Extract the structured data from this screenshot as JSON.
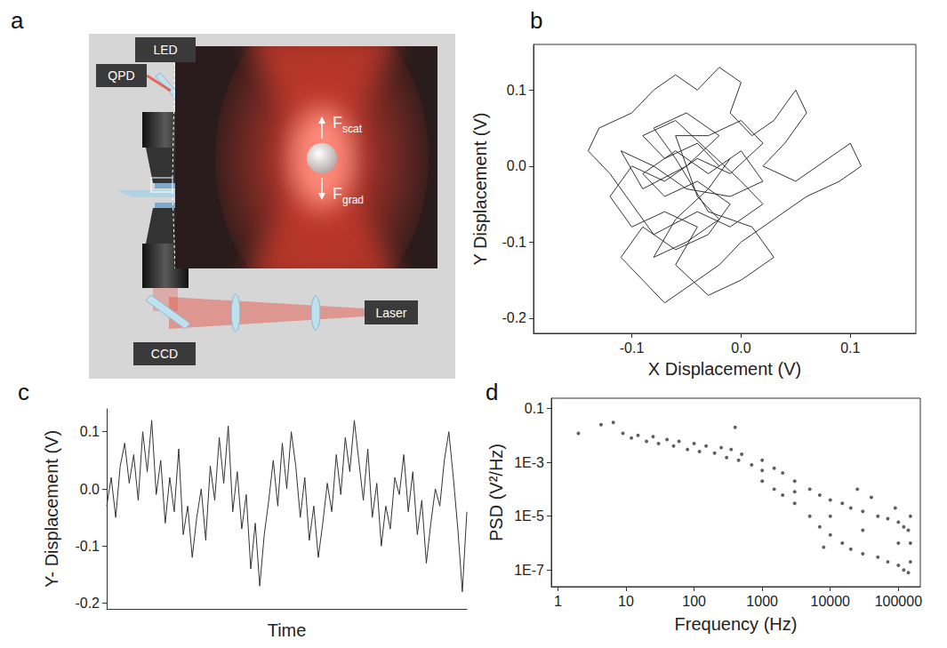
{
  "diagram": {
    "panel": "a",
    "components": {
      "led": "LED",
      "qpd": "QPD",
      "ccd": "CCD",
      "laser": "Laser"
    },
    "forces": [
      {
        "base": "F",
        "sub": "scat"
      },
      {
        "base": "F",
        "sub": "grad"
      }
    ]
  },
  "chart_data": [
    {
      "panel": "b",
      "type": "line",
      "x_label": "X Displacement (V)",
      "y_label": "Y Displacement (V)",
      "color": "#333333",
      "marker": "none",
      "line_style": "solid",
      "grid": false,
      "xlim": [
        -0.19,
        0.16
      ],
      "ylim": [
        -0.22,
        0.16
      ],
      "xticks": [
        -0.1,
        {
          "value": 0,
          "label": "0.0"
        },
        0.1
      ],
      "yticks": [
        -0.2,
        -0.1,
        {
          "value": 0,
          "label": "0.0"
        },
        0.1
      ],
      "x": [
        -0.02,
        -0.04,
        -0.07,
        -0.09,
        -0.06,
        -0.03,
        0.0,
        0.02,
        -0.01,
        -0.04,
        -0.08,
        -0.1,
        -0.12,
        -0.14,
        -0.13,
        -0.1,
        -0.08,
        -0.06,
        -0.04,
        -0.02,
        0.0,
        -0.01,
        0.01,
        0.03,
        0.05,
        0.06,
        0.04,
        0.02,
        0.05,
        0.08,
        0.1,
        0.11,
        0.09,
        0.06,
        0.03,
        0.0,
        -0.02,
        -0.05,
        -0.07,
        -0.09,
        -0.11,
        -0.09,
        -0.06,
        -0.03,
        -0.01,
        -0.04,
        -0.07,
        -0.09,
        -0.06,
        -0.03,
        0.0,
        0.02,
        -0.01,
        -0.05,
        -0.08,
        -0.11,
        -0.09,
        -0.05,
        -0.02,
        -0.05,
        -0.08,
        -0.06,
        -0.03,
        0.01,
        0.03,
        0.0,
        -0.03,
        -0.06,
        -0.04,
        -0.07,
        -0.1,
        -0.12,
        -0.1,
        -0.07,
        -0.04,
        -0.01,
        0.02,
        0.0,
        -0.03,
        -0.06,
        -0.04,
        -0.02,
        -0.05,
        -0.08,
        -0.06,
        -0.03,
        -0.01
      ],
      "values": [
        0.0,
        0.03,
        0.01,
        0.04,
        0.06,
        0.02,
        -0.02,
        -0.05,
        -0.08,
        -0.06,
        -0.09,
        -0.05,
        -0.01,
        0.02,
        0.05,
        0.07,
        0.1,
        0.12,
        0.1,
        0.13,
        0.11,
        0.07,
        0.04,
        0.06,
        0.1,
        0.07,
        0.03,
        0.0,
        -0.02,
        0.01,
        0.03,
        0.0,
        -0.02,
        -0.04,
        -0.07,
        -0.1,
        -0.13,
        -0.16,
        -0.18,
        -0.15,
        -0.12,
        -0.08,
        -0.11,
        -0.09,
        -0.05,
        -0.02,
        -0.04,
        -0.01,
        0.02,
        -0.01,
        0.02,
        -0.02,
        -0.04,
        -0.03,
        0.0,
        0.02,
        -0.03,
        0.0,
        0.04,
        0.07,
        0.05,
        0.01,
        -0.06,
        -0.08,
        -0.12,
        -0.15,
        -0.17,
        -0.13,
        -0.08,
        -0.06,
        -0.08,
        -0.04,
        0.0,
        -0.02,
        0.01,
        -0.01,
        0.03,
        0.06,
        0.04,
        0.04,
        -0.04,
        -0.07,
        -0.1,
        -0.12,
        -0.07,
        -0.03,
        0.01
      ]
    },
    {
      "panel": "c",
      "type": "line",
      "x_label": "Time",
      "y_label": "Y- Displacement (V)",
      "color": "#333333",
      "marker": "none",
      "line_style": "solid",
      "grid": false,
      "tick_labels": "y",
      "xlim": [
        0,
        80
      ],
      "ylim": [
        -0.21,
        0.14
      ],
      "yticks": [
        -0.2,
        -0.1,
        {
          "value": 0,
          "label": "0.0"
        },
        0.1
      ],
      "x": [
        0,
        1,
        2,
        3,
        4,
        5,
        6,
        7,
        8,
        9,
        10,
        11,
        12,
        13,
        14,
        15,
        16,
        17,
        18,
        19,
        20,
        21,
        22,
        23,
        24,
        25,
        26,
        27,
        28,
        29,
        30,
        31,
        32,
        33,
        34,
        35,
        36,
        37,
        38,
        39,
        40,
        41,
        42,
        43,
        44,
        45,
        46,
        47,
        48,
        49,
        50,
        51,
        52,
        53,
        54,
        55,
        56,
        57,
        58,
        59,
        60,
        61,
        62,
        63,
        64,
        65,
        66,
        67,
        68,
        69,
        70,
        71,
        72,
        73,
        74,
        75,
        76,
        77,
        78,
        79,
        80
      ],
      "values": [
        -0.03,
        0.02,
        -0.05,
        0.04,
        0.08,
        0.01,
        0.06,
        -0.02,
        0.1,
        0.03,
        0.12,
        -0.01,
        0.05,
        -0.06,
        0.02,
        -0.04,
        0.07,
        -0.08,
        -0.03,
        -0.12,
        -0.05,
        0.0,
        -0.09,
        0.04,
        -0.02,
        0.09,
        0.01,
        0.11,
        -0.04,
        0.03,
        -0.07,
        -0.01,
        -0.14,
        -0.06,
        -0.17,
        -0.08,
        -0.02,
        0.05,
        -0.03,
        0.08,
        0.0,
        0.1,
        0.04,
        -0.05,
        0.02,
        -0.09,
        -0.03,
        -0.12,
        -0.06,
        0.01,
        -0.04,
        0.06,
        -0.01,
        0.09,
        0.03,
        0.12,
        0.05,
        -0.02,
        0.07,
        -0.05,
        0.01,
        -0.1,
        -0.03,
        -0.07,
        0.02,
        -0.01,
        0.06,
        -0.04,
        0.03,
        -0.08,
        -0.02,
        -0.13,
        -0.06,
        0.0,
        -0.03,
        0.05,
        0.1,
        0.02,
        -0.07,
        -0.18,
        -0.04
      ]
    },
    {
      "panel": "d",
      "type": "scatter",
      "x_label": "Frequency (Hz)",
      "y_label": "PSD (V²/Hz)",
      "color": "#3a3a3a",
      "marker": "circle",
      "grid": false,
      "log": true,
      "xlim": [
        0.8,
        210000
      ],
      "ylim": [
        2.4e-08,
        0.24
      ],
      "xticks": [
        1,
        10,
        100,
        1000,
        10000,
        100000
      ],
      "yticks": [
        {
          "value": 1e-07,
          "label": "1E-7"
        },
        {
          "value": 1e-05,
          "label": "1E-5"
        },
        {
          "value": 0.001,
          "label": "1E-3"
        },
        0.1
      ],
      "x": [
        2,
        4.3,
        6.5,
        9,
        12,
        15,
        20,
        25,
        30,
        40,
        50,
        60,
        80,
        100,
        120,
        150,
        200,
        250,
        300,
        350,
        400,
        450,
        500,
        700,
        1000,
        1000,
        1000,
        1500,
        1500,
        2000,
        2000,
        3000,
        3000,
        3000,
        5000,
        5000,
        7000,
        7000,
        8000,
        10000,
        10000,
        10000,
        15000,
        15000,
        20000,
        20000,
        25000,
        30000,
        30000,
        30000,
        40000,
        50000,
        50000,
        70000,
        70000,
        90000,
        100000,
        100000,
        100000,
        120000,
        120000,
        140000,
        140000,
        150000,
        150000,
        150000
      ],
      "values": [
        0.012,
        0.025,
        0.03,
        0.012,
        0.008,
        0.01,
        0.006,
        0.009,
        0.005,
        0.007,
        0.004,
        0.006,
        0.003,
        0.005,
        0.0025,
        0.004,
        0.0022,
        0.0035,
        0.0015,
        0.003,
        0.02,
        0.0012,
        0.002,
        0.0008,
        0.0012,
        0.0005,
        0.0002,
        0.0006,
        0.0001,
        0.0004,
        6e-05,
        0.0002,
        8e-05,
        3e-05,
        0.0001,
        1e-05,
        6e-05,
        4e-06,
        7e-07,
        4e-05,
        1e-05,
        2e-06,
        3e-05,
        1e-06,
        2e-05,
        6e-07,
        0.0001,
        1.5e-05,
        3e-06,
        4e-07,
        5e-05,
        1e-05,
        3e-07,
        8e-06,
        2e-07,
        2e-05,
        6e-06,
        1e-06,
        1.5e-07,
        4e-06,
        1e-07,
        3e-06,
        8e-08,
        1e-05,
        1e-06,
        2e-07
      ]
    }
  ]
}
